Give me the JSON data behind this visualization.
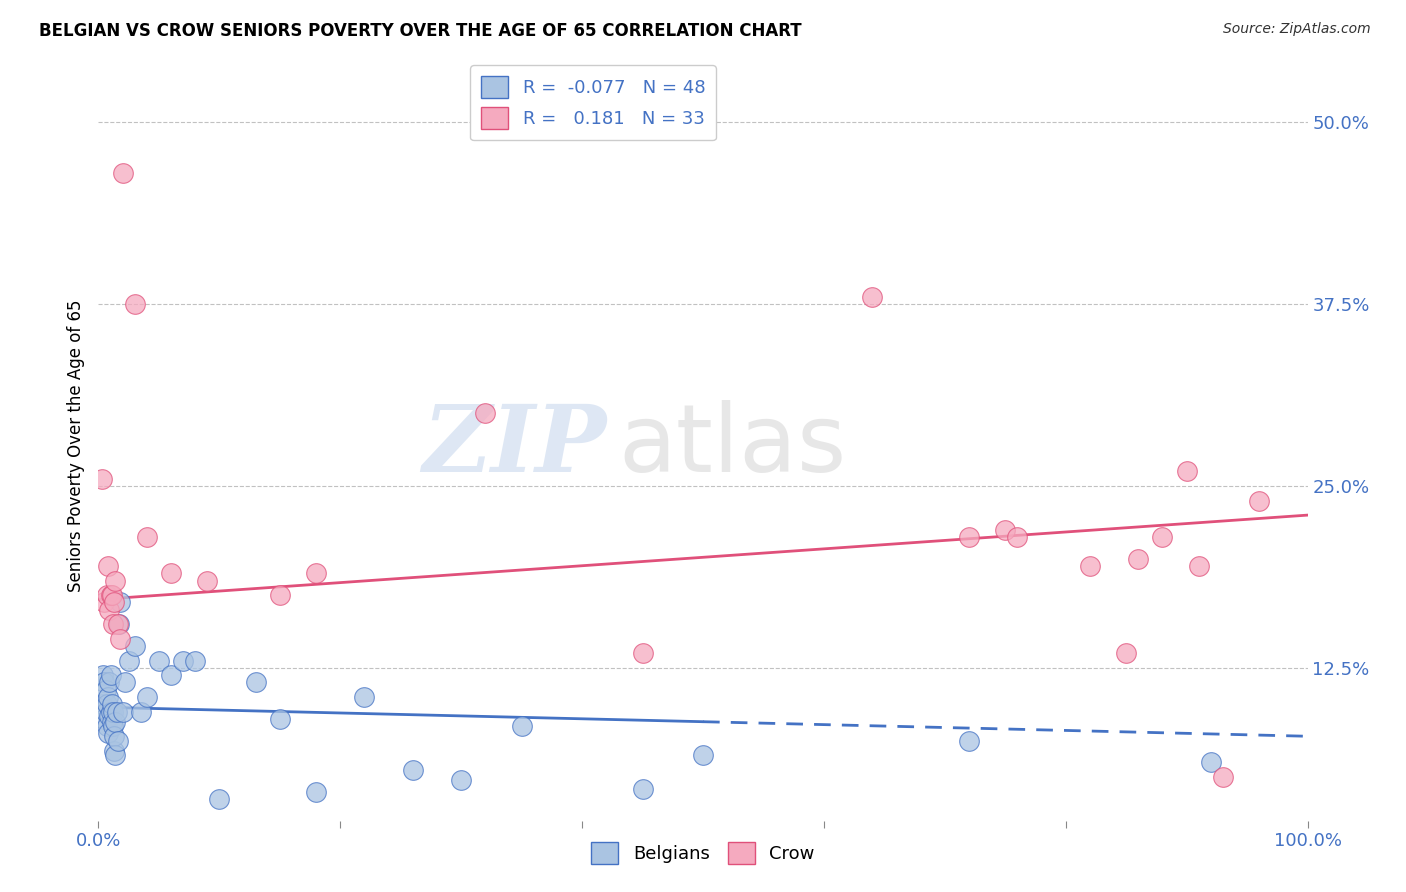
{
  "title": "BELGIAN VS CROW SENIORS POVERTY OVER THE AGE OF 65 CORRELATION CHART",
  "source": "Source: ZipAtlas.com",
  "ylabel": "Seniors Poverty Over the Age of 65",
  "xlim": [
    0,
    1.0
  ],
  "ylim": [
    0.02,
    0.535
  ],
  "yticks": [
    0.125,
    0.25,
    0.375,
    0.5
  ],
  "ytick_labels": [
    "12.5%",
    "25.0%",
    "37.5%",
    "50.0%"
  ],
  "xticks": [
    0.0,
    0.2,
    0.4,
    0.6,
    0.8,
    1.0
  ],
  "xtick_labels": [
    "0.0%",
    "",
    "",
    "",
    "",
    "100.0%"
  ],
  "belgians_R": -0.077,
  "belgians_N": 48,
  "crow_R": 0.181,
  "crow_N": 33,
  "belgians_color": "#aac4e2",
  "crow_color": "#f5aabf",
  "trendline_belgians_color": "#4472c4",
  "trendline_crow_color": "#e0507a",
  "background_color": "#ffffff",
  "watermark_zip": "ZIP",
  "watermark_atlas": "atlas",
  "trendline_b_x0": 0.0,
  "trendline_b_y0": 0.098,
  "trendline_b_x1": 0.5,
  "trendline_b_y1": 0.088,
  "trendline_b_dash_x0": 0.5,
  "trendline_b_dash_y0": 0.088,
  "trendline_b_dash_x1": 1.0,
  "trendline_b_dash_y1": 0.078,
  "trendline_c_x0": 0.0,
  "trendline_c_y0": 0.172,
  "trendline_c_x1": 1.0,
  "trendline_c_y1": 0.23,
  "belgians_x": [
    0.003,
    0.004,
    0.005,
    0.005,
    0.006,
    0.006,
    0.007,
    0.007,
    0.008,
    0.008,
    0.009,
    0.009,
    0.01,
    0.01,
    0.011,
    0.011,
    0.012,
    0.012,
    0.013,
    0.013,
    0.014,
    0.014,
    0.015,
    0.016,
    0.017,
    0.018,
    0.02,
    0.022,
    0.025,
    0.03,
    0.035,
    0.04,
    0.05,
    0.06,
    0.07,
    0.08,
    0.1,
    0.13,
    0.15,
    0.18,
    0.22,
    0.26,
    0.3,
    0.35,
    0.45,
    0.5,
    0.72,
    0.92
  ],
  "belgians_y": [
    0.1,
    0.12,
    0.09,
    0.115,
    0.095,
    0.11,
    0.085,
    0.1,
    0.08,
    0.105,
    0.092,
    0.115,
    0.095,
    0.12,
    0.088,
    0.1,
    0.085,
    0.095,
    0.068,
    0.078,
    0.088,
    0.065,
    0.095,
    0.075,
    0.155,
    0.17,
    0.095,
    0.115,
    0.13,
    0.14,
    0.095,
    0.105,
    0.13,
    0.12,
    0.13,
    0.13,
    0.035,
    0.115,
    0.09,
    0.04,
    0.105,
    0.055,
    0.048,
    0.085,
    0.042,
    0.065,
    0.075,
    0.06
  ],
  "crow_x": [
    0.003,
    0.005,
    0.007,
    0.008,
    0.009,
    0.01,
    0.011,
    0.012,
    0.013,
    0.014,
    0.016,
    0.018,
    0.02,
    0.03,
    0.04,
    0.06,
    0.09,
    0.15,
    0.18,
    0.32,
    0.45,
    0.64,
    0.72,
    0.75,
    0.76,
    0.82,
    0.85,
    0.86,
    0.88,
    0.9,
    0.91,
    0.93,
    0.96
  ],
  "crow_y": [
    0.255,
    0.17,
    0.175,
    0.195,
    0.165,
    0.175,
    0.175,
    0.155,
    0.17,
    0.185,
    0.155,
    0.145,
    0.465,
    0.375,
    0.215,
    0.19,
    0.185,
    0.175,
    0.19,
    0.3,
    0.135,
    0.38,
    0.215,
    0.22,
    0.215,
    0.195,
    0.135,
    0.2,
    0.215,
    0.26,
    0.195,
    0.05,
    0.24
  ]
}
